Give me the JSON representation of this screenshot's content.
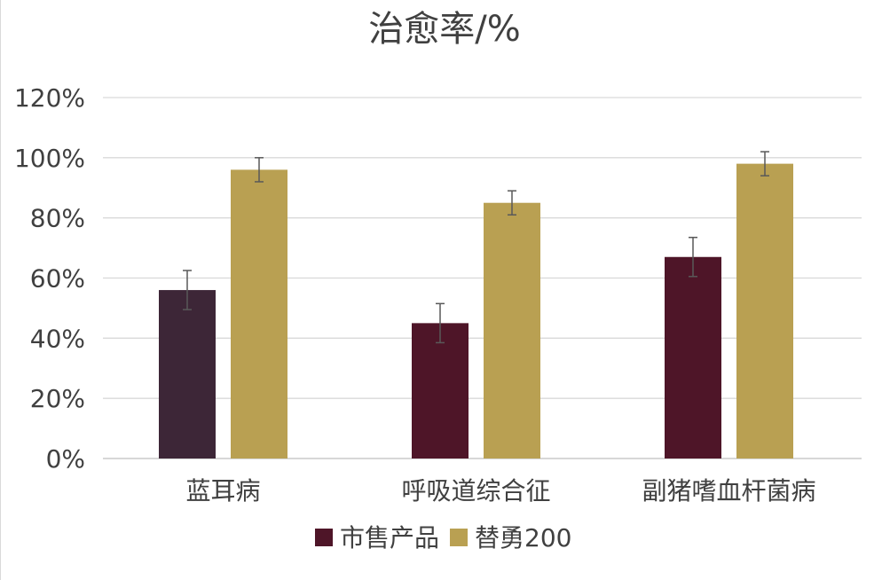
{
  "chart_data": {
    "type": "bar",
    "title": "治愈率/%",
    "categories": [
      "蓝耳病",
      "呼吸道综合征",
      "副猪嗜血杆菌病"
    ],
    "series": [
      {
        "name": "市售产品",
        "values": [
          56,
          45,
          67
        ],
        "error": [
          6.5,
          6.5,
          6.5
        ],
        "color": "#4E1528",
        "point_colors": [
          "#3D2637",
          "#4E1528",
          "#4E1528"
        ]
      },
      {
        "name": "替勇200",
        "values": [
          96,
          85,
          98
        ],
        "error": [
          4,
          4,
          4
        ],
        "color": "#B9A052"
      }
    ],
    "ylim": [
      0,
      120
    ],
    "ytick_step": 20,
    "ytick_labels": [
      "0%",
      "20%",
      "40%",
      "60%",
      "80%",
      "100%",
      "120%"
    ],
    "grid": true,
    "legend_position": "bottom",
    "colors": {
      "grid": "#d9d9d9",
      "axis": "#bfbfbf",
      "text": "#404040",
      "error_bar": "#595959"
    }
  }
}
